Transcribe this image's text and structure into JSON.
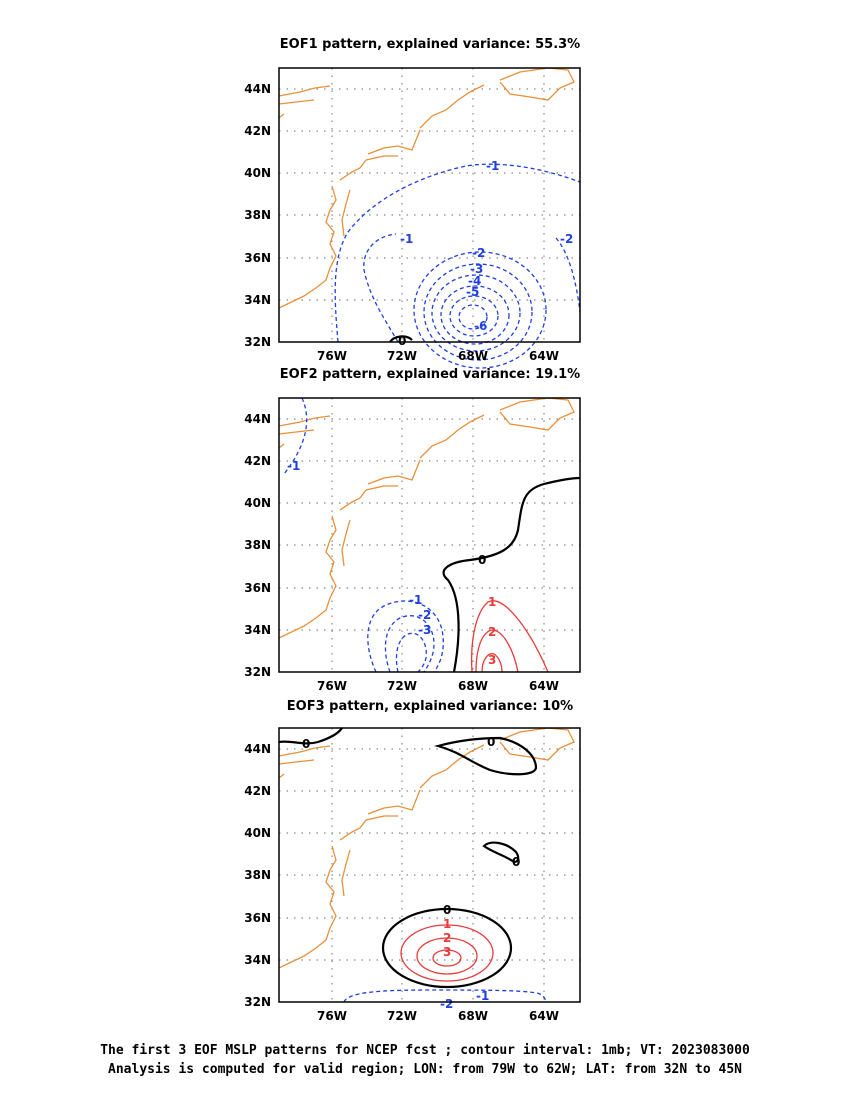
{
  "colors": {
    "coast": "#e8903a",
    "negative": "#1f3fe0",
    "positive": "#e83a3a",
    "zero": "#000000",
    "grid": "#888888"
  },
  "captions": {
    "line1": "The first 3 EOF MSLP patterns for NCEP fcst ; contour interval: 1mb; VT: 2023083000",
    "line2": "Analysis is computed for valid region; LON: from 79W to 62W; LAT: from 32N to 45N"
  },
  "chart_data": [
    {
      "type": "contour",
      "title": "EOF1 pattern, explained variance: 55.3%",
      "explained_variance_percent": 55.3,
      "x_range": [
        "79W",
        "62W"
      ],
      "y_range": [
        "32N",
        "45N"
      ],
      "x_ticks": [
        "76W",
        "72W",
        "68W",
        "64W"
      ],
      "y_ticks": [
        "32N",
        "34N",
        "36N",
        "38N",
        "40N",
        "42N",
        "44N"
      ],
      "grid": true,
      "contour_labels": [
        "-1",
        "-1",
        "-2",
        "-2",
        "-3",
        "-4",
        "-5",
        "-6",
        "0"
      ]
    },
    {
      "type": "contour",
      "title": "EOF2 pattern, explained variance: 19.1%",
      "explained_variance_percent": 19.1,
      "x_range": [
        "79W",
        "62W"
      ],
      "y_range": [
        "32N",
        "45N"
      ],
      "x_ticks": [
        "76W",
        "72W",
        "68W",
        "64W"
      ],
      "y_ticks": [
        "32N",
        "34N",
        "36N",
        "38N",
        "40N",
        "42N",
        "44N"
      ],
      "grid": true,
      "contour_labels": [
        "-1",
        "-1",
        "-2",
        "-3",
        "0",
        "1",
        "2",
        "3"
      ]
    },
    {
      "type": "contour",
      "title": "EOF3 pattern, explained variance: 10%",
      "explained_variance_percent": 10,
      "x_range": [
        "79W",
        "62W"
      ],
      "y_range": [
        "32N",
        "45N"
      ],
      "x_ticks": [
        "76W",
        "72W",
        "68W",
        "64W"
      ],
      "y_ticks": [
        "32N",
        "34N",
        "36N",
        "38N",
        "40N",
        "42N",
        "44N"
      ],
      "grid": true,
      "contour_labels": [
        "0",
        "0",
        "0",
        "0",
        "1",
        "2",
        "3",
        "-1",
        "-2"
      ]
    }
  ]
}
